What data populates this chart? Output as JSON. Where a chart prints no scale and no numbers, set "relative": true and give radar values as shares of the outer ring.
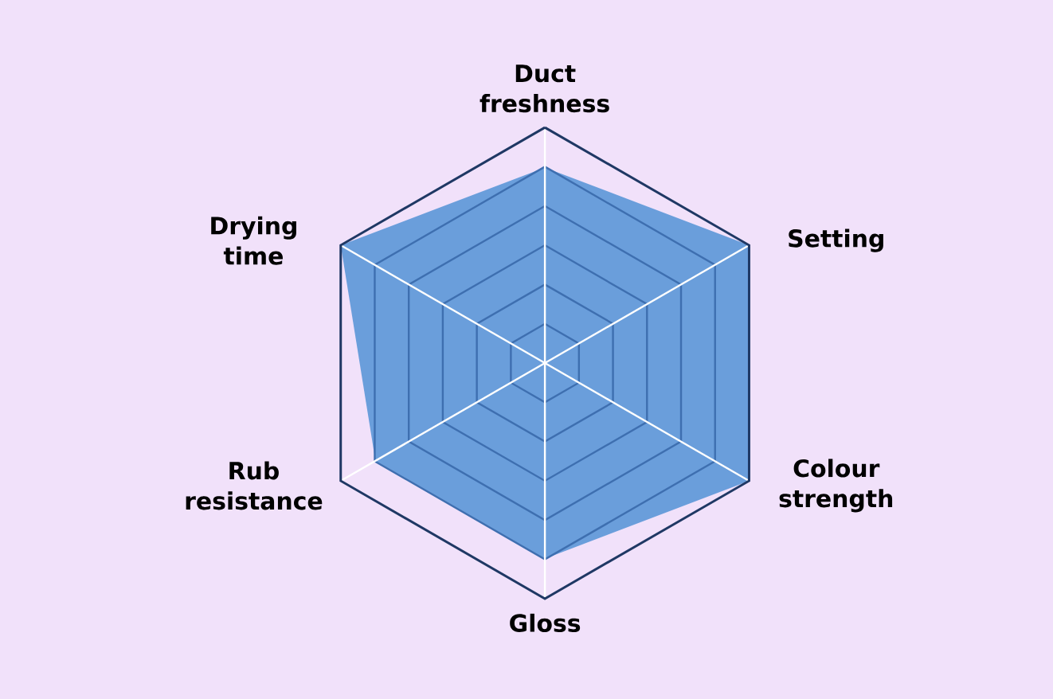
{
  "chart_data": {
    "type": "radar",
    "relative": true,
    "grid": true,
    "categories": [
      "Duct freshness",
      "Setting",
      "Colour strength",
      "Gloss",
      "Rub resistance",
      "Drying time"
    ],
    "color": "#6a9edb",
    "values": [
      0.83,
      1,
      1,
      0.83,
      0.83,
      1
    ]
  }
}
